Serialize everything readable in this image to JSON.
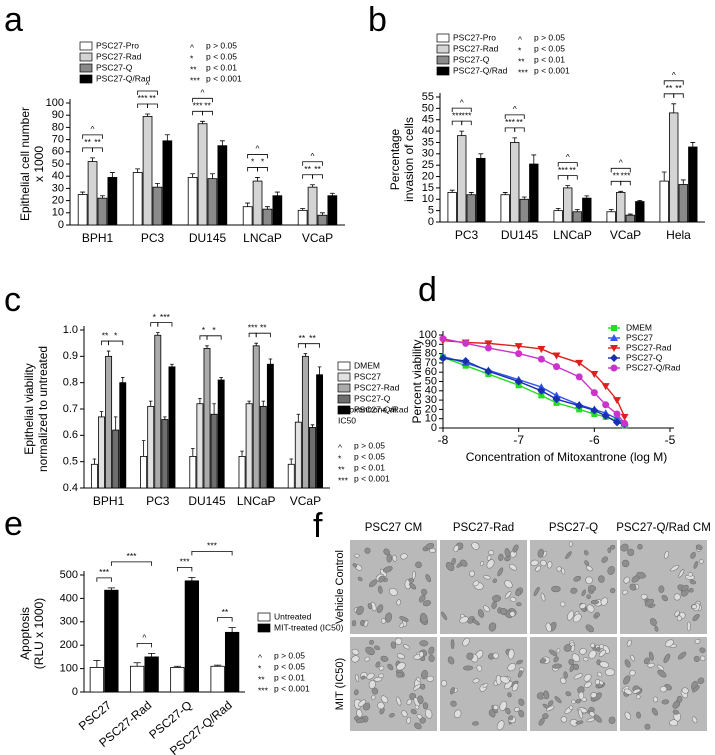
{
  "chart_data": [
    {
      "type": "bar",
      "panel": "a",
      "ylabel": [
        "Epithelial cell number",
        "x 1000"
      ],
      "categories": [
        "BPH1",
        "PC3",
        "DU145",
        "LNCaP",
        "VCaP"
      ],
      "series": [
        {
          "name": "PSC27-Pro",
          "color": "#ffffff",
          "values": [
            25,
            43,
            39,
            15,
            12
          ],
          "errors": [
            2,
            3,
            3,
            3,
            1.5
          ]
        },
        {
          "name": "PSC27-Rad",
          "color": "#d4d4d4",
          "values": [
            52,
            89,
            83,
            36,
            31
          ],
          "errors": [
            3,
            2,
            2,
            3,
            2
          ]
        },
        {
          "name": "PSC27-Q",
          "color": "#8a8a8a",
          "values": [
            22,
            31,
            38,
            13,
            8
          ],
          "errors": [
            2,
            3,
            4,
            2,
            2
          ]
        },
        {
          "name": "PSC27-Q/Rad",
          "color": "#000000",
          "values": [
            39,
            69,
            65,
            24,
            24
          ],
          "errors": [
            4,
            5,
            4,
            3,
            2
          ]
        }
      ],
      "ylim": [
        0,
        100
      ],
      "yticks": [
        0,
        10,
        20,
        30,
        40,
        50,
        60,
        70,
        80,
        90,
        100
      ],
      "significance": [
        [
          "**",
          "**",
          "^"
        ],
        [
          "***",
          "**",
          "^"
        ],
        [
          "***",
          "**",
          "^"
        ],
        [
          "*",
          "*",
          "^"
        ],
        [
          "**",
          "**",
          "^"
        ]
      ],
      "p_legend": [
        {
          "symbol": "^",
          "text": "p > 0.05"
        },
        {
          "symbol": "*",
          "text": "p < 0.05"
        },
        {
          "symbol": "**",
          "text": "p < 0.01"
        },
        {
          "symbol": "***",
          "text": "p < 0.001"
        }
      ]
    },
    {
      "type": "bar",
      "panel": "b",
      "ylabel": [
        "Percentage",
        "invasion of cells"
      ],
      "categories": [
        "PC3",
        "DU145",
        "LNCaP",
        "VCaP",
        "Hela"
      ],
      "series": [
        {
          "name": "PSC27-Pro",
          "color": "#ffffff",
          "values": [
            13,
            12,
            5,
            4.5,
            18
          ],
          "errors": [
            1,
            1,
            1,
            1,
            4
          ]
        },
        {
          "name": "PSC27-Rad",
          "color": "#d4d4d4",
          "values": [
            38,
            35,
            15,
            13,
            48
          ],
          "errors": [
            2,
            2,
            1,
            0.5,
            4
          ]
        },
        {
          "name": "PSC27-Q",
          "color": "#8a8a8a",
          "values": [
            12,
            10,
            4.5,
            3,
            16.5
          ],
          "errors": [
            1,
            1,
            1,
            0.5,
            2
          ]
        },
        {
          "name": "PSC27-Q/Rad",
          "color": "#000000",
          "values": [
            28,
            25.5,
            10.5,
            9,
            33
          ],
          "errors": [
            2,
            4,
            1,
            0.5,
            2
          ]
        }
      ],
      "ylim": [
        0,
        55
      ],
      "yticks": [
        0,
        5,
        10,
        15,
        20,
        25,
        30,
        35,
        40,
        45,
        50,
        55
      ],
      "significance": [
        [
          "***",
          "***",
          "^"
        ],
        [
          "***",
          "**",
          "^"
        ],
        [
          "***",
          "**",
          "^"
        ],
        [
          "**",
          "***",
          "^"
        ],
        [
          "**",
          "**",
          "^"
        ]
      ],
      "p_legend": [
        {
          "symbol": "^",
          "text": "p > 0.05"
        },
        {
          "symbol": "*",
          "text": "p < 0.05"
        },
        {
          "symbol": "**",
          "text": "p < 0.01"
        },
        {
          "symbol": "***",
          "text": "p < 0.001"
        }
      ]
    },
    {
      "type": "bar",
      "panel": "c",
      "ylabel": [
        "Epithelial viability",
        "normalized to untreated"
      ],
      "categories": [
        "BPH1",
        "PC3",
        "DU145",
        "LNCaP",
        "VCaP"
      ],
      "series": [
        {
          "name": "DMEM",
          "color": "#ffffff",
          "values": [
            0.49,
            0.52,
            0.52,
            0.52,
            0.49
          ],
          "errors": [
            0.02,
            0.06,
            0.03,
            0.02,
            0.02
          ]
        },
        {
          "name": "PSC27",
          "color": "#e2e2e2",
          "values": [
            0.67,
            0.71,
            0.72,
            0.72,
            0.65
          ],
          "errors": [
            0.02,
            0.02,
            0.02,
            0.01,
            0.03
          ]
        },
        {
          "name": "PSC27-Rad",
          "color": "#ababab",
          "values": [
            0.9,
            0.98,
            0.93,
            0.94,
            0.9
          ],
          "errors": [
            0.02,
            0.01,
            0.01,
            0.01,
            0.01
          ]
        },
        {
          "name": "PSC27-Q",
          "color": "#6e6e6e",
          "values": [
            0.62,
            0.66,
            0.68,
            0.71,
            0.63
          ],
          "errors": [
            0.05,
            0.01,
            0.04,
            0.02,
            0.01
          ]
        },
        {
          "name": "PSC27-Q/Rad",
          "color": "#000000",
          "values": [
            0.8,
            0.86,
            0.81,
            0.87,
            0.83
          ],
          "errors": [
            0.02,
            0.01,
            0.01,
            0.02,
            0.03
          ]
        }
      ],
      "ylim": [
        0.4,
        1.0
      ],
      "yticks": [
        0.4,
        0.5,
        0.6,
        0.7,
        0.8,
        0.9,
        {
          "value": 1.0,
          "label": "1.0"
        }
      ],
      "significance": [
        [
          "**",
          "*"
        ],
        [
          "*",
          "***"
        ],
        [
          "*",
          "*"
        ],
        [
          "***",
          "**"
        ],
        [
          "**",
          "**"
        ]
      ],
      "note": [
        "Mitoxantrone at",
        "IC50"
      ],
      "p_legend": [
        {
          "symbol": "^",
          "text": "p > 0.05"
        },
        {
          "symbol": "*",
          "text": "p < 0.05"
        },
        {
          "symbol": "**",
          "text": "p < 0.01"
        },
        {
          "symbol": "***",
          "text": "p < 0.001"
        }
      ]
    },
    {
      "type": "line",
      "panel": "d",
      "ylabel": [
        "Percent viability"
      ],
      "xlabel": "Concentration of Mitoxantrone (log M)",
      "x": [
        -8,
        -7.7,
        -7.4,
        -7.0,
        -6.7,
        -6.5,
        -6.2,
        -6.0,
        -5.85,
        -5.7,
        -5.6
      ],
      "series": [
        {
          "name": "DMEM",
          "color": "#22dd22",
          "marker": "square",
          "values": [
            76,
            67,
            58,
            46,
            35,
            27,
            20,
            15,
            12,
            8,
            3
          ]
        },
        {
          "name": "PSC27",
          "color": "#3355ee",
          "marker": "triangle",
          "values": [
            77,
            70,
            62,
            52,
            44,
            35,
            25,
            20,
            16,
            10,
            5
          ]
        },
        {
          "name": "PSC27-Rad",
          "color": "#e02020",
          "marker": "triangle-down",
          "values": [
            94,
            92,
            91,
            88,
            85,
            78,
            70,
            58,
            45,
            30,
            12
          ]
        },
        {
          "name": "PSC27-Q",
          "color": "#1a2fb0",
          "marker": "diamond",
          "values": [
            75,
            72,
            61,
            50,
            40,
            31,
            24,
            19,
            13,
            6,
            4
          ]
        },
        {
          "name": "PSC27-Q/Rad",
          "color": "#cc33cc",
          "marker": "circle",
          "values": [
            96,
            91,
            86,
            80,
            74,
            66,
            55,
            38,
            25,
            15,
            5
          ]
        }
      ],
      "xlim": [
        -8,
        -5
      ],
      "xticks": [
        -8,
        -7,
        -6,
        -5
      ],
      "ylim": [
        0,
        100
      ],
      "yticks": [
        0,
        10,
        20,
        30,
        40,
        50,
        60,
        70,
        80,
        90,
        100
      ]
    },
    {
      "type": "bar",
      "panel": "e",
      "ylabel": [
        "Apoptosis",
        "(RLU x 1000)"
      ],
      "categories": [
        "PSC27",
        "PSC27-Rad",
        "PSC27-Q",
        "PSC27-Q/Rad"
      ],
      "series": [
        {
          "name": "Untreated",
          "color": "#ffffff",
          "values": [
            105,
            110,
            105,
            110
          ],
          "errors": [
            30,
            15,
            5,
            5
          ]
        },
        {
          "name": "MIT-treated (IC50)",
          "color": "#000000",
          "values": [
            435,
            150,
            475,
            255
          ],
          "errors": [
            10,
            15,
            15,
            20
          ]
        }
      ],
      "ylim": [
        0,
        500
      ],
      "yticks": [
        0,
        100,
        200,
        300,
        400,
        500
      ],
      "significance": [
        [
          "***"
        ],
        [
          "^"
        ],
        [
          "***"
        ],
        [
          "**"
        ]
      ],
      "significance_between": [
        "***",
        "***"
      ],
      "p_legend": [
        {
          "symbol": "^",
          "text": "p > 0.05"
        },
        {
          "symbol": "*",
          "text": "p < 0.05"
        },
        {
          "symbol": "**",
          "text": "p < 0.01"
        },
        {
          "symbol": "***",
          "text": "p < 0.001"
        }
      ]
    }
  ],
  "image_panel": {
    "panel": "f",
    "columns": [
      "PSC27 CM",
      "PSC27-Rad",
      "PSC27-Q",
      "PSC27-Q/Rad CM"
    ],
    "rows": [
      "Vehicle Control",
      "MIT (IC50)"
    ]
  }
}
